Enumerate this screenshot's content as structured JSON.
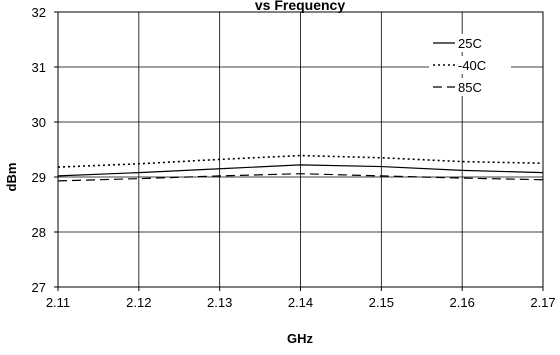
{
  "chart_data": {
    "type": "line",
    "title": "vs Frequency",
    "xlabel": "GHz",
    "ylabel": "dBm",
    "xlim": [
      2.11,
      2.17
    ],
    "ylim": [
      27,
      32
    ],
    "x_ticks": [
      "2.11",
      "2.12",
      "2.13",
      "2.14",
      "2.15",
      "2.16",
      "2.17"
    ],
    "y_ticks": [
      "27",
      "28",
      "29",
      "30",
      "31",
      "32"
    ],
    "grid": true,
    "legend_position": "top-right",
    "series": [
      {
        "name": "25C",
        "style": "solid",
        "x": [
          2.11,
          2.12,
          2.13,
          2.14,
          2.15,
          2.16,
          2.17
        ],
        "y": [
          29.02,
          29.08,
          29.15,
          29.22,
          29.19,
          29.12,
          29.08
        ]
      },
      {
        "name": "-40C",
        "style": "dotted",
        "x": [
          2.11,
          2.12,
          2.13,
          2.14,
          2.15,
          2.16,
          2.17
        ],
        "y": [
          29.18,
          29.24,
          29.32,
          29.39,
          29.35,
          29.28,
          29.25
        ]
      },
      {
        "name": "85C",
        "style": "dashed",
        "x": [
          2.11,
          2.12,
          2.13,
          2.14,
          2.15,
          2.16,
          2.17
        ],
        "y": [
          28.93,
          28.97,
          29.02,
          29.06,
          29.02,
          28.98,
          28.95
        ]
      }
    ]
  }
}
